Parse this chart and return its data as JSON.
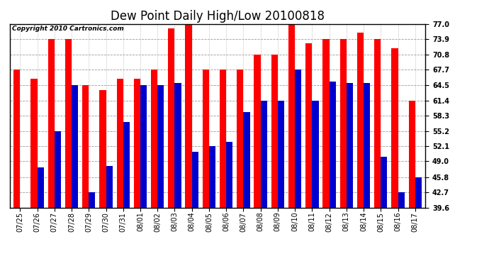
{
  "title": "Dew Point Daily High/Low 20100818",
  "copyright": "Copyright 2010 Cartronics.com",
  "dates": [
    "07/25",
    "07/26",
    "07/27",
    "07/28",
    "07/29",
    "07/30",
    "07/31",
    "08/01",
    "08/02",
    "08/03",
    "08/04",
    "08/05",
    "08/06",
    "08/07",
    "08/08",
    "08/09",
    "08/10",
    "08/11",
    "08/12",
    "08/13",
    "08/14",
    "08/15",
    "08/16",
    "08/17"
  ],
  "highs": [
    67.7,
    65.8,
    73.9,
    73.9,
    64.5,
    63.5,
    65.8,
    65.8,
    67.7,
    76.1,
    77.0,
    67.7,
    67.7,
    67.7,
    70.8,
    70.8,
    77.0,
    73.0,
    73.9,
    73.9,
    75.2,
    73.9,
    72.0,
    61.4
  ],
  "lows": [
    39.6,
    47.8,
    55.2,
    64.5,
    42.7,
    48.0,
    57.0,
    64.5,
    64.5,
    65.0,
    51.0,
    52.1,
    53.0,
    59.0,
    61.4,
    61.4,
    67.7,
    61.4,
    65.2,
    65.0,
    65.0,
    50.0,
    42.7,
    45.8
  ],
  "high_color": "#ff0000",
  "low_color": "#0000cc",
  "background_color": "#ffffff",
  "grid_color": "#999999",
  "yticks": [
    39.6,
    42.7,
    45.8,
    49.0,
    52.1,
    55.2,
    58.3,
    61.4,
    64.5,
    67.7,
    70.8,
    73.9,
    77.0
  ],
  "ymin": 39.6,
  "ymax": 77.0,
  "bar_width": 0.38,
  "title_fontsize": 12,
  "tick_fontsize": 7,
  "copyright_fontsize": 6.5
}
